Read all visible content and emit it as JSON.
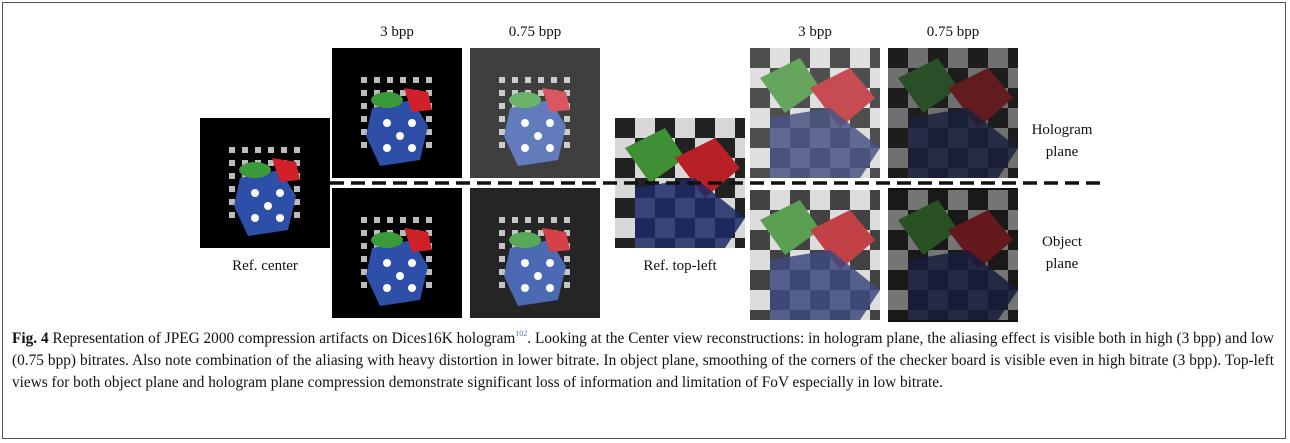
{
  "figure": {
    "column_labels": [
      "3 bpp",
      "0.75 bpp",
      "3 bpp",
      "0.75 bpp"
    ],
    "ref_labels": [
      "Ref. center",
      "Ref. top-left"
    ],
    "row_labels": [
      [
        "Hologram",
        "plane"
      ],
      [
        "Object",
        "plane"
      ]
    ]
  },
  "caption": {
    "label": "Fig. 4",
    "text_before": " Representation of JPEG 2000 compression artifacts on Dices16K hologram",
    "superscript": "102",
    "text_after": ". Looking at the Center view reconstructions: in hologram plane, the aliasing effect is visible both in high (3 bpp) and low (0.75 bpp) bitrates. Also note combination of the aliasing with heavy distortion in lower bitrate. In object plane, smoothing of the corners of the checker board is visible even in high bitrate (3 bpp). Top-left views for both object plane and hologram plane compression demonstrate significant loss of information and limitation of FoV especially in low bitrate."
  }
}
